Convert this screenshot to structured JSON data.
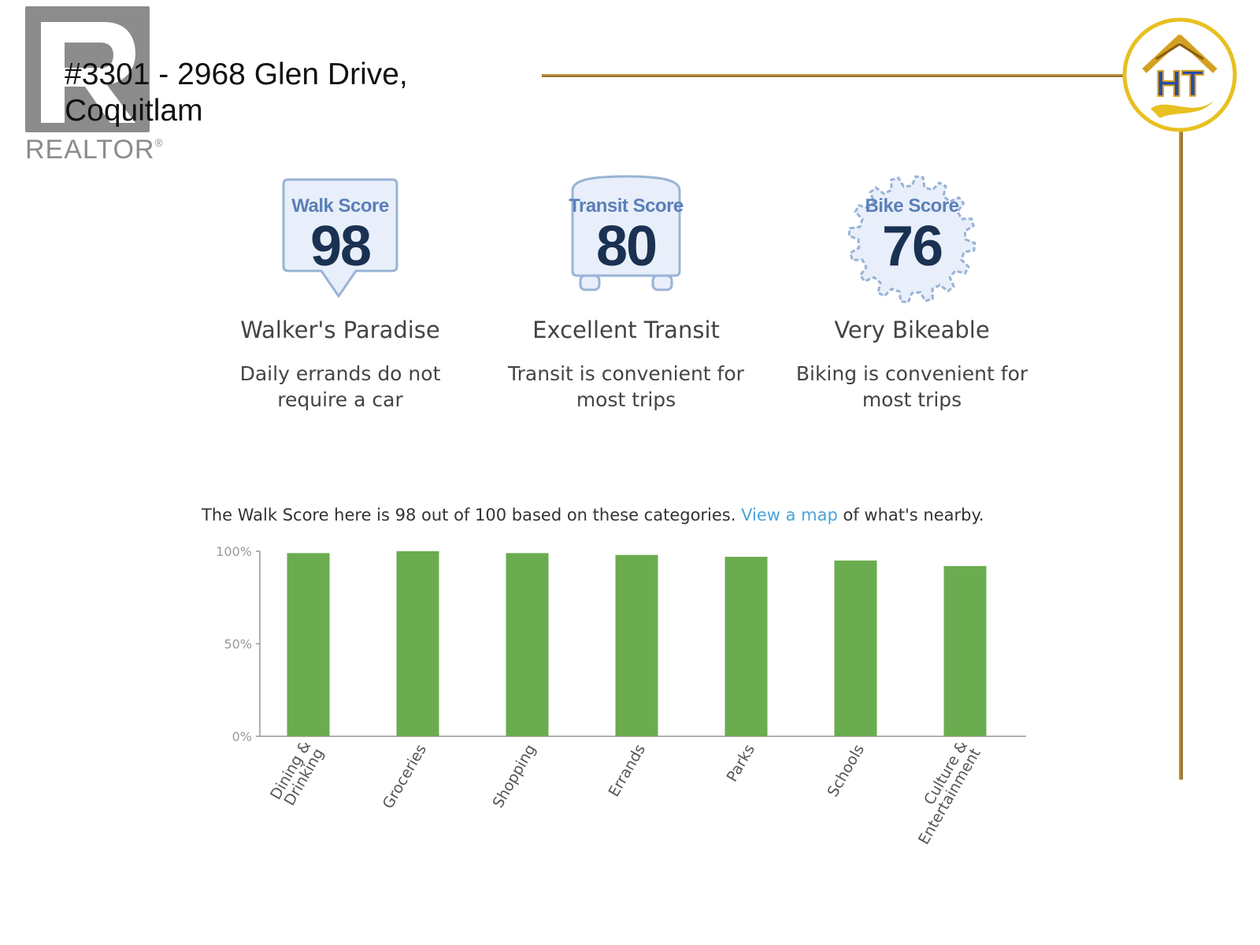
{
  "header": {
    "address_line1": "#3301 - 2968 Glen Drive,",
    "address_line2": "Coquitlam",
    "realtor_logo_text": "REALTOR",
    "realtor_logo_mark": "®",
    "company_logo_text": "HT"
  },
  "scores": [
    {
      "title": "Walk Score",
      "value": "98",
      "label": "Walker's Paradise",
      "description": "Daily errands do not require a car"
    },
    {
      "title": "Transit Score",
      "value": "80",
      "label": "Excellent Transit",
      "description": "Transit is convenient for most trips"
    },
    {
      "title": "Bike Score",
      "value": "76",
      "label": "Very Bikeable",
      "description": "Biking is convenient for most trips"
    }
  ],
  "summary": {
    "before": "The Walk Score here is 98 out of 100 based on these categories. ",
    "link": "View a map",
    "after": " of what's nearby."
  },
  "colors": {
    "bar": "#6aac4f",
    "badge_fill": "#e8effa",
    "badge_stroke": "#9ab3d6",
    "gold": "#c9a24a",
    "link": "#4aa3d9"
  },
  "chart_data": {
    "type": "bar",
    "categories": [
      [
        "Dining &",
        "Drinking"
      ],
      [
        "Groceries"
      ],
      [
        "Shopping"
      ],
      [
        "Errands"
      ],
      [
        "Parks"
      ],
      [
        "Schools"
      ],
      [
        "Culture &",
        "Entertainment"
      ]
    ],
    "values": [
      99,
      100,
      99,
      98,
      97,
      95,
      92
    ],
    "ylim": [
      0,
      100
    ],
    "yticks": [
      {
        "value": 0,
        "label": "0%"
      },
      {
        "value": 50,
        "label": "50%"
      },
      {
        "value": 100,
        "label": "100%"
      }
    ],
    "grid": false,
    "title": "",
    "xlabel": "",
    "ylabel": ""
  }
}
